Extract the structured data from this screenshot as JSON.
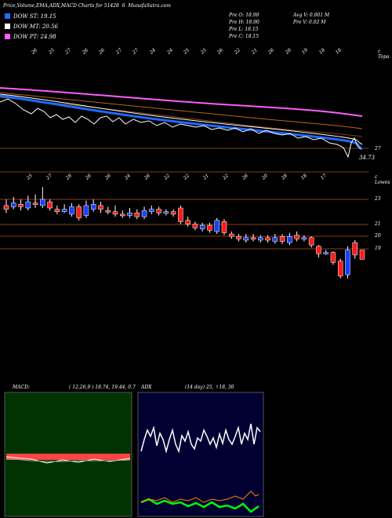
{
  "header": {
    "title": "Price,Volume,EMA,ADX,MACD Charts for 51428",
    "code": "6",
    "brand": "MunafaSutra.com"
  },
  "legend": [
    {
      "label": "DOW ST: 19.15",
      "color": "#1e6bff"
    },
    {
      "label": "DOW MT: 20.56",
      "color": "#ffffff"
    },
    {
      "label": "DOW PT: 24.98",
      "color": "#ff5cff"
    }
  ],
  "stats": {
    "prev_open": "Pre  O: 18.90",
    "prev_high": "Pre  H: 18.90",
    "prev_low": "Pre  L: 18.15",
    "prev_close": "Pre  C: 18.15",
    "avg_volume": "Avg V: 0.001 M",
    "prev_volume": "Pre  V: 0.02  M"
  },
  "colors": {
    "up": "#1a3fff",
    "down": "#ff1a1a",
    "ema_st": "#1e6bff",
    "ema_pt": "#ff5cff",
    "macd_bg": "#003300",
    "adx_bg": "#000033"
  },
  "top_panel": {
    "right_label": "c Topa",
    "price_label_1": "27",
    "price_label_2": "34.73",
    "date_labels": [
      "26",
      "25",
      "27",
      "26",
      "26",
      "27",
      "27",
      "24",
      "24",
      "25",
      "25",
      "26",
      "22",
      "21",
      "26",
      "28",
      "19",
      "18",
      "18"
    ]
  },
  "candle_panel": {
    "right_label": "c Lowes",
    "date_labels": [
      "25",
      "27",
      "28",
      "26",
      "26",
      "24",
      "26",
      "22",
      "22",
      "21",
      "22",
      "26",
      "20",
      "28",
      "18",
      "17"
    ],
    "levels": [
      {
        "label": "23"
      },
      {
        "label": "21"
      },
      {
        "label": "20"
      },
      {
        "label": "19"
      }
    ],
    "candles": [
      {
        "o": 22.5,
        "c": 22.2,
        "h": 23.0,
        "l": 21.9,
        "up": false
      },
      {
        "o": 22.4,
        "c": 22.7,
        "h": 23.2,
        "l": 22.2,
        "up": true
      },
      {
        "o": 22.6,
        "c": 22.4,
        "h": 23.0,
        "l": 22.1,
        "up": false
      },
      {
        "o": 22.3,
        "c": 22.8,
        "h": 23.3,
        "l": 22.1,
        "up": true
      },
      {
        "o": 22.7,
        "c": 22.6,
        "h": 23.4,
        "l": 22.3,
        "up": false
      },
      {
        "o": 22.5,
        "c": 23.0,
        "h": 24.0,
        "l": 22.3,
        "up": true
      },
      {
        "o": 22.8,
        "c": 22.3,
        "h": 23.0,
        "l": 22.1,
        "up": false
      },
      {
        "o": 22.2,
        "c": 22.0,
        "h": 22.5,
        "l": 21.8,
        "up": false
      },
      {
        "o": 22.0,
        "c": 22.2,
        "h": 22.6,
        "l": 21.9,
        "up": true
      },
      {
        "o": 21.8,
        "c": 22.4,
        "h": 22.7,
        "l": 21.6,
        "up": true
      },
      {
        "o": 22.4,
        "c": 21.5,
        "h": 22.6,
        "l": 21.3,
        "up": false
      },
      {
        "o": 21.7,
        "c": 22.5,
        "h": 22.9,
        "l": 21.5,
        "up": true
      },
      {
        "o": 22.2,
        "c": 22.6,
        "h": 23.0,
        "l": 22.0,
        "up": true
      },
      {
        "o": 22.5,
        "c": 22.2,
        "h": 22.8,
        "l": 21.9,
        "up": false
      },
      {
        "o": 22.1,
        "c": 22.0,
        "h": 22.4,
        "l": 21.8,
        "up": false
      },
      {
        "o": 22.0,
        "c": 21.8,
        "h": 22.5,
        "l": 21.6,
        "up": false
      },
      {
        "o": 21.8,
        "c": 21.7,
        "h": 22.1,
        "l": 21.5,
        "up": false
      },
      {
        "o": 21.7,
        "c": 21.9,
        "h": 22.3,
        "l": 21.5,
        "up": true
      },
      {
        "o": 21.9,
        "c": 21.6,
        "h": 22.2,
        "l": 21.4,
        "up": false
      },
      {
        "o": 21.6,
        "c": 22.1,
        "h": 22.4,
        "l": 21.4,
        "up": true
      },
      {
        "o": 22.0,
        "c": 22.2,
        "h": 22.5,
        "l": 21.8,
        "up": true
      },
      {
        "o": 22.2,
        "c": 21.9,
        "h": 22.4,
        "l": 21.7,
        "up": false
      },
      {
        "o": 21.9,
        "c": 22.0,
        "h": 22.2,
        "l": 21.7,
        "up": true
      },
      {
        "o": 22.0,
        "c": 21.8,
        "h": 22.2,
        "l": 21.6,
        "up": false
      },
      {
        "o": 22.3,
        "c": 21.2,
        "h": 22.5,
        "l": 21.0,
        "up": false
      },
      {
        "o": 21.3,
        "c": 21.0,
        "h": 21.6,
        "l": 20.8,
        "up": false
      },
      {
        "o": 21.0,
        "c": 20.7,
        "h": 21.2,
        "l": 20.5,
        "up": false
      },
      {
        "o": 20.6,
        "c": 20.9,
        "h": 21.1,
        "l": 20.4,
        "up": true
      },
      {
        "o": 20.9,
        "c": 20.5,
        "h": 21.1,
        "l": 20.3,
        "up": false
      },
      {
        "o": 20.4,
        "c": 21.3,
        "h": 21.5,
        "l": 20.2,
        "up": true
      },
      {
        "o": 21.2,
        "c": 20.3,
        "h": 21.4,
        "l": 20.1,
        "up": false
      },
      {
        "o": 20.2,
        "c": 20.0,
        "h": 20.4,
        "l": 19.8,
        "up": false
      },
      {
        "o": 20.0,
        "c": 19.8,
        "h": 20.2,
        "l": 19.6,
        "up": false
      },
      {
        "o": 19.7,
        "c": 19.9,
        "h": 20.2,
        "l": 19.5,
        "up": true
      },
      {
        "o": 19.9,
        "c": 19.8,
        "h": 20.2,
        "l": 19.6,
        "up": false
      },
      {
        "o": 19.7,
        "c": 19.9,
        "h": 20.1,
        "l": 19.5,
        "up": true
      },
      {
        "o": 19.9,
        "c": 19.7,
        "h": 20.1,
        "l": 19.5,
        "up": false
      },
      {
        "o": 19.6,
        "c": 19.9,
        "h": 20.2,
        "l": 19.4,
        "up": true
      },
      {
        "o": 20.0,
        "c": 19.6,
        "h": 20.2,
        "l": 19.4,
        "up": false
      },
      {
        "o": 19.5,
        "c": 20.0,
        "h": 20.3,
        "l": 19.3,
        "up": true
      },
      {
        "o": 20.1,
        "c": 19.8,
        "h": 20.4,
        "l": 19.6,
        "up": false
      },
      {
        "o": 19.8,
        "c": 19.9,
        "h": 20.1,
        "l": 19.6,
        "up": true
      },
      {
        "o": 19.9,
        "c": 19.3,
        "h": 20.0,
        "l": 19.1,
        "up": false
      },
      {
        "o": 19.2,
        "c": 18.6,
        "h": 19.3,
        "l": 18.3,
        "up": false
      },
      {
        "o": 18.7,
        "c": 18.7,
        "h": 18.9,
        "l": 18.5,
        "up": true
      },
      {
        "o": 18.7,
        "c": 17.9,
        "h": 18.8,
        "l": 17.7,
        "up": false
      },
      {
        "o": 18.0,
        "c": 16.8,
        "h": 18.2,
        "l": 16.6,
        "up": false
      },
      {
        "o": 16.9,
        "c": 18.9,
        "h": 19.2,
        "l": 16.6,
        "up": true
      },
      {
        "o": 19.5,
        "c": 18.5,
        "h": 19.7,
        "l": 18.2,
        "up": false
      },
      {
        "o": 18.9,
        "c": 18.15,
        "h": 18.9,
        "l": 18.15,
        "up": false
      }
    ]
  },
  "macd_panel": {
    "title": "MACD:",
    "params": "( 12,26,9 ) 18.74, 19.44,  0.7"
  },
  "adx_panel": {
    "title": "ADX",
    "params": "(14 day) 25, ↑18, 30"
  }
}
